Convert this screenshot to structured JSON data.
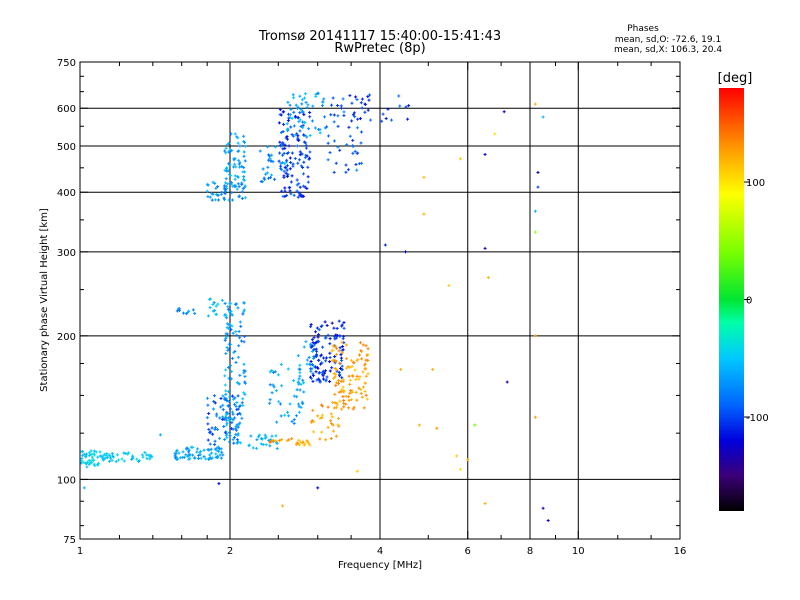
{
  "header": {
    "title_line1": "Tromsø 20141117 15:40:00-15:41:43",
    "title_line2": "RwPretec (8p)",
    "stats_title": "Phases",
    "stats_o": "mean, sd,O: -72.6, 19.1",
    "stats_x": "mean, sd,X: 106.3, 20.4"
  },
  "colorbar": {
    "unit_label": "[deg]",
    "range": [
      -180,
      180
    ],
    "tick_values": [
      100,
      0,
      -100
    ],
    "tick_labels": [
      "100",
      "0",
      "-100"
    ],
    "stops": [
      {
        "v": -180,
        "color": "#000000"
      },
      {
        "v": -150,
        "color": "#3c0078"
      },
      {
        "v": -120,
        "color": "#0000dc"
      },
      {
        "v": -90,
        "color": "#0064ff"
      },
      {
        "v": -50,
        "color": "#00c8ff"
      },
      {
        "v": -20,
        "color": "#00ffaa"
      },
      {
        "v": 0,
        "color": "#00e632"
      },
      {
        "v": 40,
        "color": "#78ff00"
      },
      {
        "v": 90,
        "color": "#ffff00"
      },
      {
        "v": 130,
        "color": "#ff9600"
      },
      {
        "v": 180,
        "color": "#ff0000"
      }
    ]
  },
  "chart_data": {
    "type": "scatter",
    "title": "Tromsø 20141117 15:40:00-15:41:43",
    "subtitle": "RwPretec (8p)",
    "xlabel": "Frequency [MHz]",
    "ylabel": "Stationary phase Virtual Height [km]",
    "x_scale": "log",
    "y_scale": "log",
    "xlim": [
      1,
      16
    ],
    "ylim": [
      75,
      750
    ],
    "x_ticks": [
      1,
      2,
      4,
      6,
      8,
      10,
      16
    ],
    "x_tick_labels": [
      "1",
      "2",
      "4",
      "6",
      "8",
      "10",
      "16"
    ],
    "y_ticks": [
      75,
      100,
      200,
      300,
      400,
      500,
      600,
      750
    ],
    "y_tick_labels": [
      "75",
      "100",
      "200",
      "300",
      "400",
      "500",
      "600",
      "750"
    ],
    "x_major_grid": [
      2,
      4,
      6,
      8,
      10
    ],
    "y_major_grid": [
      100,
      200,
      300,
      400,
      500,
      600
    ],
    "x_minor_ticks": [
      1.2,
      1.4,
      1.6,
      1.8,
      2.5,
      3,
      3.5,
      5,
      7,
      9,
      12,
      14
    ],
    "y_minor_ticks": [
      80,
      90,
      125,
      150,
      175,
      250,
      350,
      450,
      550,
      650,
      700
    ],
    "grid": true,
    "color_encoding": "phase [deg]",
    "clusters": [
      {
        "f_min": 1.0,
        "f_max": 1.1,
        "h_min": 106,
        "h_max": 115,
        "phase_min": -60,
        "phase_max": -35,
        "count": 40
      },
      {
        "f_min": 1.1,
        "f_max": 1.4,
        "h_min": 109,
        "h_max": 114,
        "phase_min": -60,
        "phase_max": -40,
        "count": 45
      },
      {
        "f_min": 1.55,
        "f_max": 1.95,
        "h_min": 110,
        "h_max": 117,
        "phase_min": -80,
        "phase_max": -50,
        "count": 70
      },
      {
        "f_min": 1.8,
        "f_max": 2.1,
        "h_min": 118,
        "h_max": 150,
        "phase_min": -110,
        "phase_max": -60,
        "count": 70
      },
      {
        "f_min": 1.95,
        "f_max": 2.15,
        "h_min": 120,
        "h_max": 235,
        "phase_min": -90,
        "phase_max": -45,
        "count": 110
      },
      {
        "f_min": 1.8,
        "f_max": 2.05,
        "h_min": 220,
        "h_max": 240,
        "phase_min": -70,
        "phase_max": -40,
        "count": 20
      },
      {
        "f_min": 1.55,
        "f_max": 1.7,
        "h_min": 222,
        "h_max": 228,
        "phase_min": -90,
        "phase_max": -60,
        "count": 10
      },
      {
        "f_min": 2.05,
        "f_max": 2.5,
        "h_min": 116,
        "h_max": 124,
        "phase_min": -70,
        "phase_max": -45,
        "count": 30
      },
      {
        "f_min": 2.4,
        "f_max": 2.9,
        "h_min": 118,
        "h_max": 122,
        "phase_min": 110,
        "phase_max": 140,
        "count": 25
      },
      {
        "f_min": 2.85,
        "f_max": 3.4,
        "h_min": 121,
        "h_max": 145,
        "phase_min": 110,
        "phase_max": 140,
        "count": 30
      },
      {
        "f_min": 2.4,
        "f_max": 2.8,
        "h_min": 130,
        "h_max": 175,
        "phase_min": -80,
        "phase_max": -50,
        "count": 40
      },
      {
        "f_min": 2.7,
        "f_max": 2.95,
        "h_min": 150,
        "h_max": 195,
        "phase_min": -75,
        "phase_max": -45,
        "count": 30
      },
      {
        "f_min": 2.9,
        "f_max": 3.4,
        "h_min": 160,
        "h_max": 215,
        "phase_min": -125,
        "phase_max": -90,
        "count": 120
      },
      {
        "f_min": 3.2,
        "f_max": 3.8,
        "h_min": 140,
        "h_max": 195,
        "phase_min": 110,
        "phase_max": 140,
        "count": 110
      },
      {
        "f_min": 1.8,
        "f_max": 2.15,
        "h_min": 385,
        "h_max": 420,
        "phase_min": -90,
        "phase_max": -50,
        "count": 50
      },
      {
        "f_min": 1.95,
        "f_max": 2.15,
        "h_min": 410,
        "h_max": 530,
        "phase_min": -80,
        "phase_max": -45,
        "count": 60
      },
      {
        "f_min": 2.3,
        "f_max": 2.6,
        "h_min": 420,
        "h_max": 500,
        "phase_min": -90,
        "phase_max": -50,
        "count": 30
      },
      {
        "f_min": 2.5,
        "f_max": 2.9,
        "h_min": 390,
        "h_max": 600,
        "phase_min": -120,
        "phase_max": -85,
        "count": 130
      },
      {
        "f_min": 2.6,
        "f_max": 3.1,
        "h_min": 520,
        "h_max": 650,
        "phase_min": -80,
        "phase_max": -45,
        "count": 50
      },
      {
        "f_min": 3.1,
        "f_max": 3.7,
        "h_min": 440,
        "h_max": 640,
        "phase_min": -110,
        "phase_max": -70,
        "count": 50
      },
      {
        "f_min": 3.4,
        "f_max": 4.6,
        "h_min": 560,
        "h_max": 640,
        "phase_min": -120,
        "phase_max": -80,
        "count": 25
      }
    ],
    "isolated_points": [
      {
        "f": 1.02,
        "h": 96,
        "phase": -60
      },
      {
        "f": 1.45,
        "h": 124,
        "phase": -60
      },
      {
        "f": 1.9,
        "h": 98,
        "phase": -120
      },
      {
        "f": 2.55,
        "h": 88,
        "phase": 120
      },
      {
        "f": 3.0,
        "h": 96,
        "phase": -120
      },
      {
        "f": 3.6,
        "h": 104,
        "phase": 110
      },
      {
        "f": 4.4,
        "h": 170,
        "phase": 120
      },
      {
        "f": 4.8,
        "h": 130,
        "phase": 120
      },
      {
        "f": 5.1,
        "h": 170,
        "phase": 120
      },
      {
        "f": 5.2,
        "h": 128,
        "phase": 130
      },
      {
        "f": 5.7,
        "h": 112,
        "phase": 110
      },
      {
        "f": 5.8,
        "h": 105,
        "phase": 100
      },
      {
        "f": 6.0,
        "h": 110,
        "phase": 120
      },
      {
        "f": 6.2,
        "h": 130,
        "phase": 40
      },
      {
        "f": 5.5,
        "h": 255,
        "phase": 110
      },
      {
        "f": 6.6,
        "h": 265,
        "phase": 120
      },
      {
        "f": 6.5,
        "h": 305,
        "phase": -130
      },
      {
        "f": 6.5,
        "h": 89,
        "phase": 120
      },
      {
        "f": 7.2,
        "h": 160,
        "phase": -130
      },
      {
        "f": 8.2,
        "h": 135,
        "phase": 130
      },
      {
        "f": 8.2,
        "h": 200,
        "phase": 130
      },
      {
        "f": 8.2,
        "h": 330,
        "phase": 50
      },
      {
        "f": 8.2,
        "h": 365,
        "phase": -60
      },
      {
        "f": 8.3,
        "h": 410,
        "phase": -100
      },
      {
        "f": 8.3,
        "h": 440,
        "phase": -120
      },
      {
        "f": 8.5,
        "h": 87,
        "phase": -130
      },
      {
        "f": 8.7,
        "h": 82,
        "phase": -130
      },
      {
        "f": 5.8,
        "h": 470,
        "phase": 110
      },
      {
        "f": 6.5,
        "h": 480,
        "phase": -120
      },
      {
        "f": 6.8,
        "h": 530,
        "phase": 100
      },
      {
        "f": 7.1,
        "h": 590,
        "phase": -130
      },
      {
        "f": 8.2,
        "h": 612,
        "phase": 120
      },
      {
        "f": 8.5,
        "h": 575,
        "phase": -60
      },
      {
        "f": 4.1,
        "h": 310,
        "phase": -110
      },
      {
        "f": 4.5,
        "h": 300,
        "phase": -120
      },
      {
        "f": 4.9,
        "h": 360,
        "phase": 120
      },
      {
        "f": 4.9,
        "h": 430,
        "phase": 120
      }
    ]
  }
}
